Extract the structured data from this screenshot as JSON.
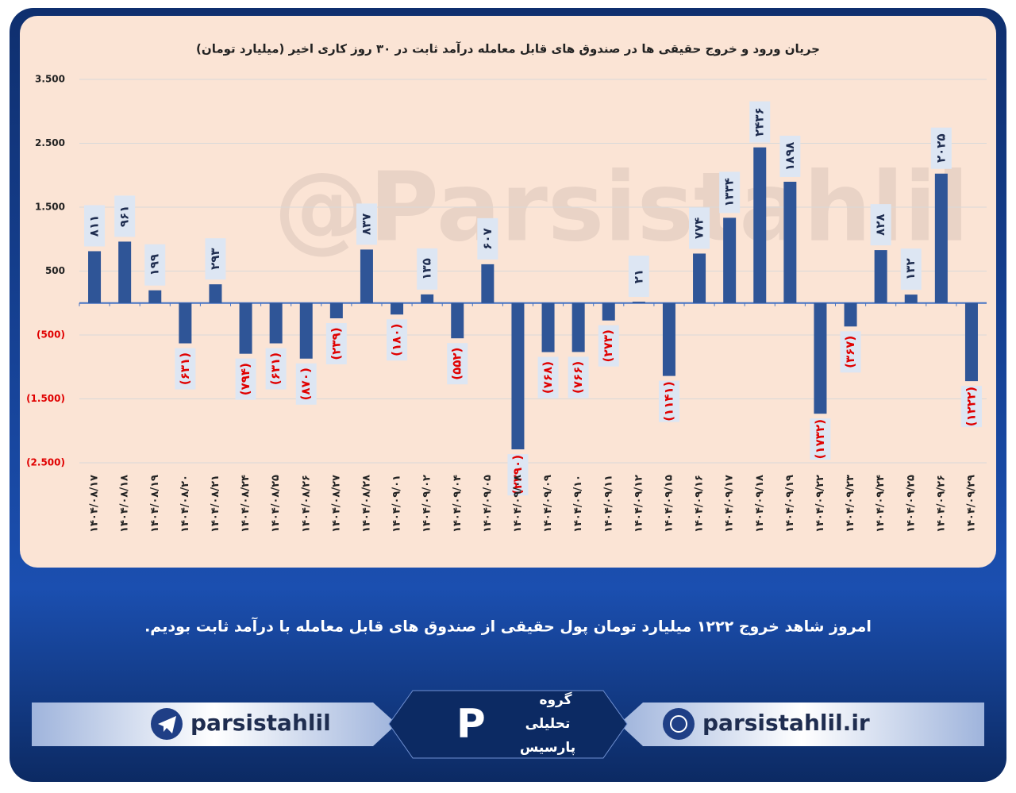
{
  "chart_data": {
    "type": "bar",
    "title": "جریان ورود و خروج حقیقی ها در صندوق های قابل معامله درآمد ثابت در ۳۰ روز کاری اخیر (میلیارد تومان)",
    "watermark": "@Parsistahlil",
    "categories": [
      "۱۴۰۴/۰۸/۱۷",
      "۱۴۰۴/۰۸/۱۸",
      "۱۴۰۴/۰۸/۱۹",
      "۱۴۰۴/۰۸/۲۰",
      "۱۴۰۴/۰۸/۲۱",
      "۱۴۰۴/۰۸/۲۴",
      "۱۴۰۴/۰۸/۲۵",
      "۱۴۰۴/۰۸/۲۶",
      "۱۴۰۴/۰۸/۲۷",
      "۱۴۰۴/۰۸/۲۸",
      "۱۴۰۴/۰۹/۰۱",
      "۱۴۰۴/۰۹/۰۲",
      "۱۴۰۴/۰۹/۰۴",
      "۱۴۰۴/۰۹/۰۵",
      "۱۴۰۴/۰۹/۰۸",
      "۱۴۰۴/۰۹/۰۹",
      "۱۴۰۴/۰۹/۱۰",
      "۱۴۰۴/۰۹/۱۱",
      "۱۴۰۴/۰۹/۱۲",
      "۱۴۰۴/۰۹/۱۵",
      "۱۴۰۴/۰۹/۱۶",
      "۱۴۰۴/۰۹/۱۷",
      "۱۴۰۴/۰۹/۱۸",
      "۱۴۰۴/۰۹/۱۹",
      "۱۴۰۴/۰۹/۲۲",
      "۱۴۰۴/۰۹/۲۳",
      "۱۴۰۴/۰۹/۲۴",
      "۱۴۰۴/۰۹/۲۵",
      "۱۴۰۴/۰۹/۲۶",
      "۱۴۰۴/۰۹/۲۹"
    ],
    "values": [
      811,
      961,
      199,
      -631,
      293,
      -794,
      -631,
      -870,
      -239,
      837,
      -180,
      135,
      -552,
      607,
      -2290,
      -768,
      -766,
      -273,
      21,
      -1141,
      774,
      1334,
      2436,
      1898,
      -1732,
      -367,
      828,
      132,
      2025,
      -1222
    ],
    "value_labels": [
      "۸۱۱",
      "۹۶۱",
      "۱۹۹",
      "(۶۳۱)",
      "۲۹۳",
      "(۷۹۴)",
      "(۶۳۱)",
      "(۸۷۰)",
      "(۲۳۹)",
      "۸۳۷",
      "(۱۸۰)",
      "۱۳۵",
      "(۵۵۲)",
      "۶۰۷",
      "(۲۲۹۰)",
      "(۷۶۸)",
      "(۷۶۶)",
      "(۲۷۳)",
      "۲۱",
      "(۱۱۴۱)",
      "۷۷۴",
      "۱۳۳۴",
      "۲۴۳۶",
      "۱۸۹۸",
      "(۱۷۳۲)",
      "(۳۶۷)",
      "۸۲۸",
      "۱۳۲",
      "۲۰۲۵",
      "(۱۲۲۲)"
    ],
    "color": "#2f5597",
    "positive_label_color": "#1f2d50",
    "negative_label_color": "#e00000",
    "ylim": [
      -2500,
      3500
    ],
    "yticks": [
      {
        "value": 3500,
        "label": "3.500"
      },
      {
        "value": 2500,
        "label": "2.500"
      },
      {
        "value": 1500,
        "label": "1.500"
      },
      500,
      {
        "value": -500,
        "label": "(500)"
      },
      {
        "value": -1500,
        "label": "(1.500)"
      },
      {
        "value": -2500,
        "label": "(2.500)"
      }
    ],
    "grid": true
  },
  "summary": "امروز شاهد خروج ۱۲۲۲ میلیارد تومان پول حقیقی از صندوق های قابل معامله با درآمد ثابت بودیم.",
  "footer": {
    "telegram": "parsistahlil",
    "website": "parsistahlil.ir",
    "logo": [
      "گروه",
      "تحلیلی",
      "پارسیس"
    ]
  }
}
